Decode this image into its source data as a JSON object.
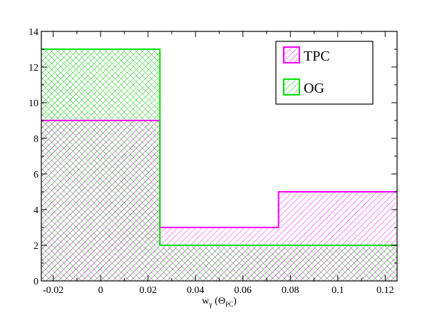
{
  "chart_data": {
    "type": "histogram",
    "xlabel": "w",
    "xlabel_sub": "γ",
    "xlabel_paren_open": " (",
    "xlabel_symbol": "Θ",
    "xlabel_symbol_sub": "PC",
    "xlabel_paren_close": ")",
    "ylabel": "",
    "xlim": [
      -0.025,
      0.125
    ],
    "ylim": [
      0,
      14
    ],
    "x_ticks": [
      {
        "value": -0.02,
        "label": "-0.02"
      },
      {
        "value": 0,
        "label": "0"
      },
      {
        "value": 0.02,
        "label": "0.02"
      },
      {
        "value": 0.04,
        "label": "0.04"
      },
      {
        "value": 0.06,
        "label": "0.06"
      },
      {
        "value": 0.08,
        "label": "0.08"
      },
      {
        "value": 0.1,
        "label": "0.1"
      },
      {
        "value": 0.12,
        "label": "0.12"
      }
    ],
    "y_ticks": [
      {
        "value": 0,
        "label": "0"
      },
      {
        "value": 2,
        "label": "2"
      },
      {
        "value": 4,
        "label": "4"
      },
      {
        "value": 6,
        "label": "6"
      },
      {
        "value": 8,
        "label": "8"
      },
      {
        "value": 10,
        "label": "10"
      },
      {
        "value": 12,
        "label": "12"
      },
      {
        "value": 14,
        "label": "14"
      }
    ],
    "grid": false,
    "legend_position": "top-right",
    "series": [
      {
        "name": "TPC",
        "color": "#ff00ff",
        "hatch": "diagonal-down",
        "bins": [
          {
            "x0": -0.025,
            "x1": 0.025,
            "value": 9
          },
          {
            "x0": 0.025,
            "x1": 0.075,
            "value": 3
          },
          {
            "x0": 0.075,
            "x1": 0.125,
            "value": 5
          }
        ]
      },
      {
        "name": "OG",
        "color": "#00e000",
        "hatch": "diagonal-down",
        "bins": [
          {
            "x0": -0.025,
            "x1": 0.025,
            "value": 13
          },
          {
            "x0": 0.025,
            "x1": 0.075,
            "value": 2
          },
          {
            "x0": 0.075,
            "x1": 0.125,
            "value": 2
          }
        ]
      }
    ]
  }
}
